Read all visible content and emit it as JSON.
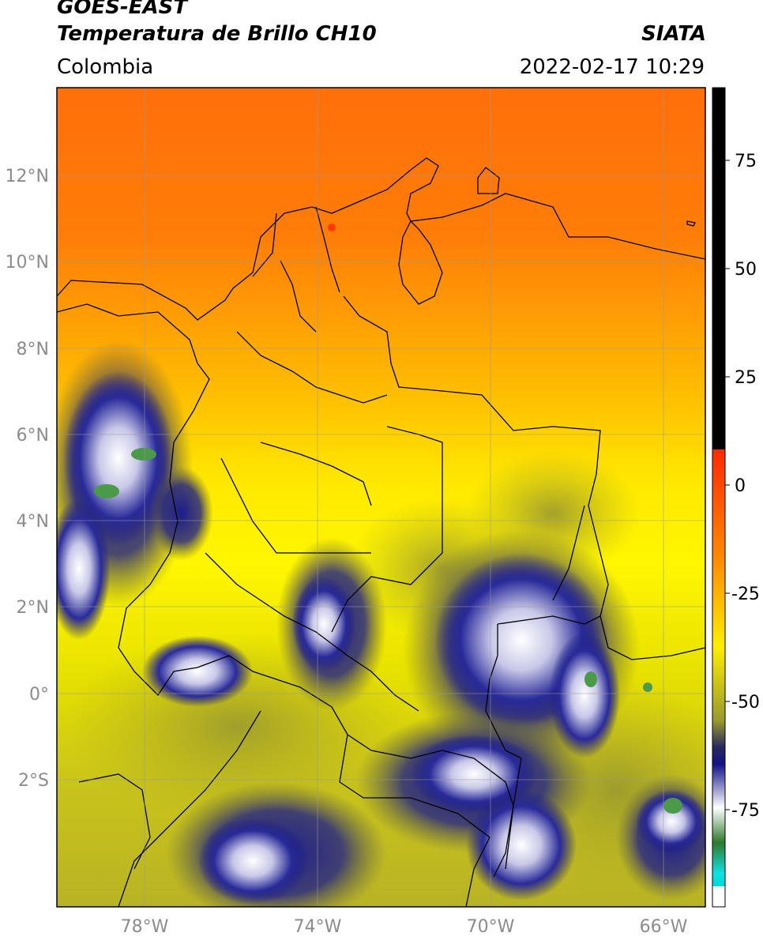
{
  "header": {
    "satellite": "GOES-EAST",
    "product": "Temperatura de Brillo CH10",
    "region": "Colombia",
    "source": "SIATA",
    "datetime": "2022-02-17 10:29"
  },
  "map": {
    "lat_labels": [
      "12°N",
      "10°N",
      "8°N",
      "6°N",
      "4°N",
      "2°N",
      "0°",
      "2°S"
    ],
    "lon_labels": [
      "78°W",
      "74°W",
      "70°W",
      "66°W"
    ]
  },
  "colorbar": {
    "tick_labels": [
      "75",
      "50",
      "25",
      "0",
      "-25",
      "-50",
      "-75"
    ]
  },
  "colors": {
    "warm_north": "#ff7a0a",
    "orange": "#ffa500",
    "yellow": "#fff200",
    "olive": "#b9b420",
    "deep_convection": "#1a1a8a",
    "cold_tops": "#ffffff",
    "green": "#3d8a3d"
  }
}
